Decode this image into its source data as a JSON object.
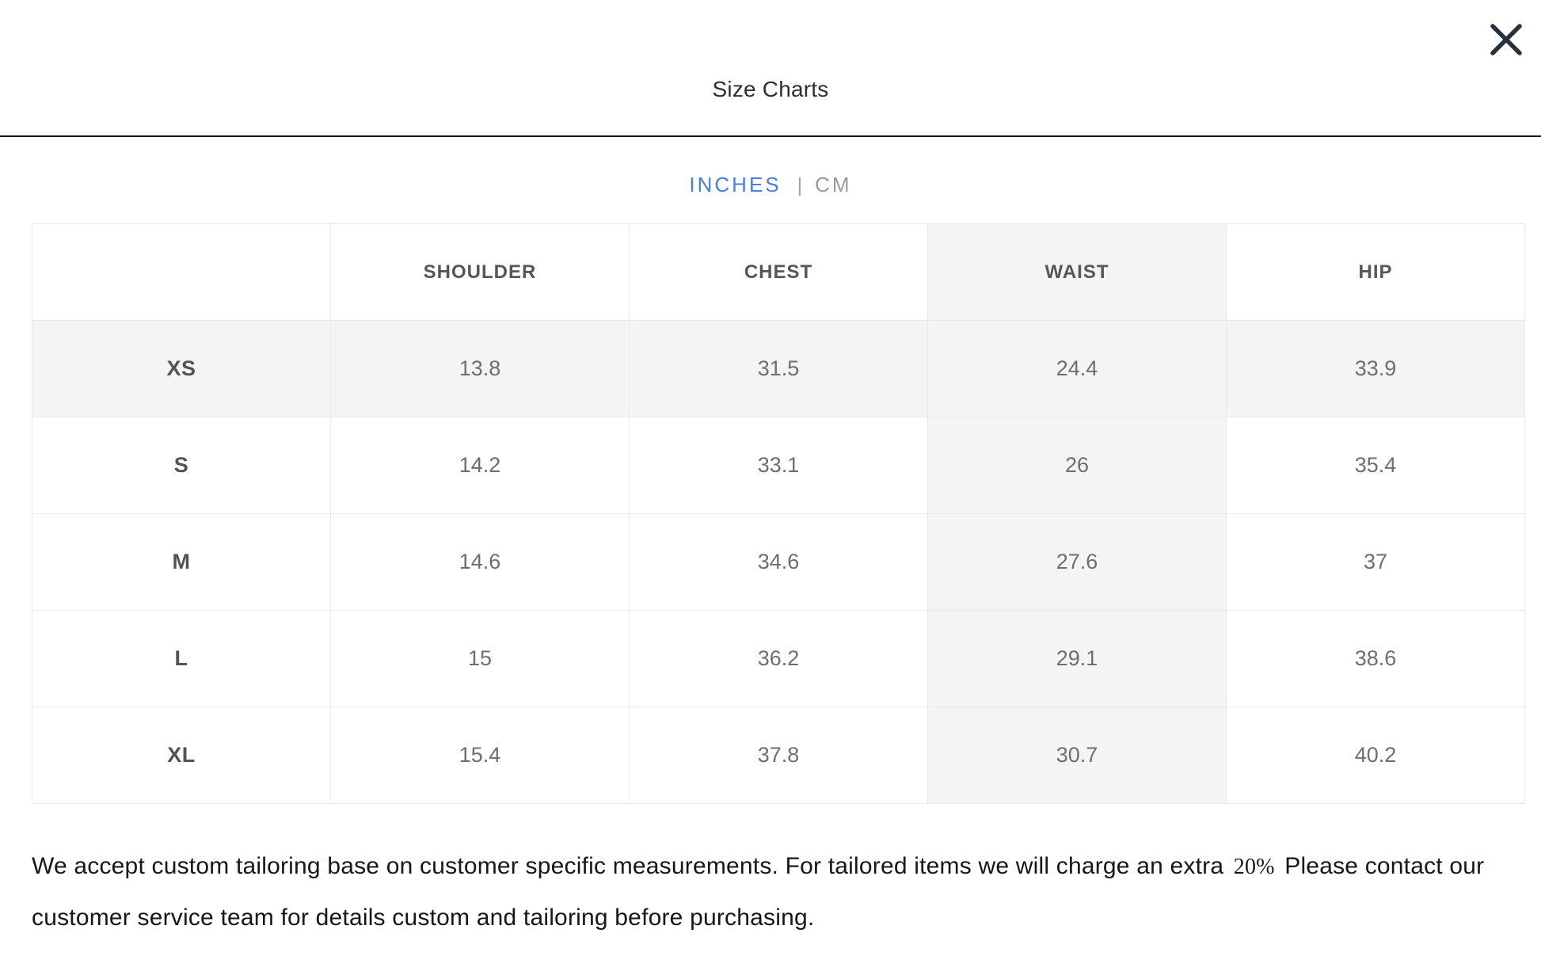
{
  "modal": {
    "title": "Size Charts"
  },
  "unit_toggle": {
    "separator": "|",
    "options": [
      {
        "label": "INCHES",
        "active": true
      },
      {
        "label": "CM",
        "active": false
      }
    ]
  },
  "size_table": {
    "columns": [
      "",
      "SHOULDER",
      "CHEST",
      "WAIST",
      "HIP"
    ],
    "shaded_column": "WAIST",
    "rows": [
      {
        "size": "XS",
        "values": [
          "13.8",
          "31.5",
          "24.4",
          "33.9"
        ],
        "shaded": true
      },
      {
        "size": "S",
        "values": [
          "14.2",
          "33.1",
          "26",
          "35.4"
        ],
        "shaded": false
      },
      {
        "size": "M",
        "values": [
          "14.6",
          "34.6",
          "27.6",
          "37"
        ],
        "shaded": false
      },
      {
        "size": "L",
        "values": [
          "15",
          "36.2",
          "29.1",
          "38.6"
        ],
        "shaded": false
      },
      {
        "size": "XL",
        "values": [
          "15.4",
          "37.8",
          "30.7",
          "40.2"
        ],
        "shaded": false
      }
    ]
  },
  "footer": {
    "text_before": "We accept custom tailoring base on customer specific measurements. For tailored items we will charge an extra",
    "highlight": "20%",
    "text_after": "Please contact our customer service team for details custom and tailoring before purchasing."
  },
  "colors": {
    "accent_blue": "#4a7de2",
    "inactive_gray": "#9a9a9a",
    "close_icon": "#263140",
    "cell_shading": "#f4f4f4",
    "table_border": "#eaeaea",
    "header_divider": "#161616"
  }
}
